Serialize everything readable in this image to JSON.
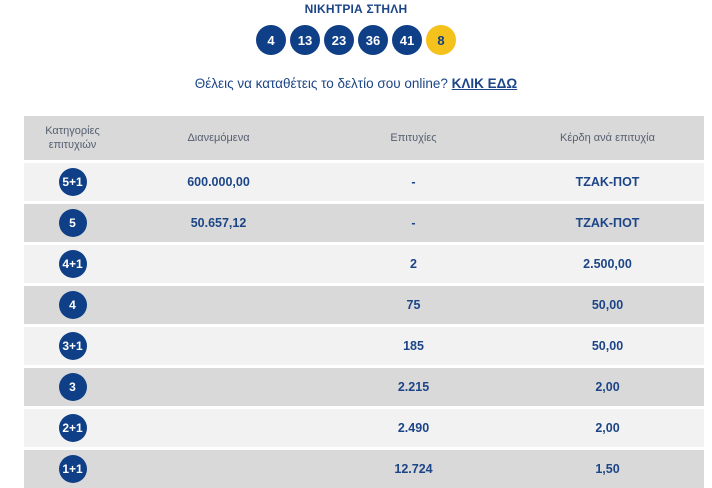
{
  "winning_column": {
    "title": "ΝΙΚΗΤΡΙΑ ΣΤΗΛΗ",
    "numbers": [
      "4",
      "13",
      "23",
      "36",
      "41"
    ],
    "bonus": "8"
  },
  "promo": {
    "text": "Θέλεις να καταθέτεις το δελτίο σου online?",
    "link_label": "ΚΛΙΚ ΕΔΩ"
  },
  "table": {
    "headers": {
      "category": "Κατηγορίες επιτυχιών",
      "distributed": "Διανεμόμενα",
      "winners": "Επιτυχίες",
      "prize": "Κέρδη ανά επιτυχία"
    },
    "rows": [
      {
        "category": "5+1",
        "distributed": "600.000,00",
        "winners": "-",
        "prize": "ΤΖΑΚ-ΠΟΤ"
      },
      {
        "category": "5",
        "distributed": "50.657,12",
        "winners": "-",
        "prize": "ΤΖΑΚ-ΠΟΤ"
      },
      {
        "category": "4+1",
        "distributed": "",
        "winners": "2",
        "prize": "2.500,00"
      },
      {
        "category": "4",
        "distributed": "",
        "winners": "75",
        "prize": "50,00"
      },
      {
        "category": "3+1",
        "distributed": "",
        "winners": "185",
        "prize": "50,00"
      },
      {
        "category": "3",
        "distributed": "",
        "winners": "2.215",
        "prize": "2,00"
      },
      {
        "category": "2+1",
        "distributed": "",
        "winners": "2.490",
        "prize": "2,00"
      },
      {
        "category": "1+1",
        "distributed": "",
        "winners": "12.724",
        "prize": "1,50"
      }
    ]
  },
  "colors": {
    "ball_blue": "#0f3f86",
    "ball_bonus": "#f5c21b",
    "text_blue": "#1c4587",
    "row_light": "#f2f2f2",
    "row_dark": "#d9d9d9"
  }
}
